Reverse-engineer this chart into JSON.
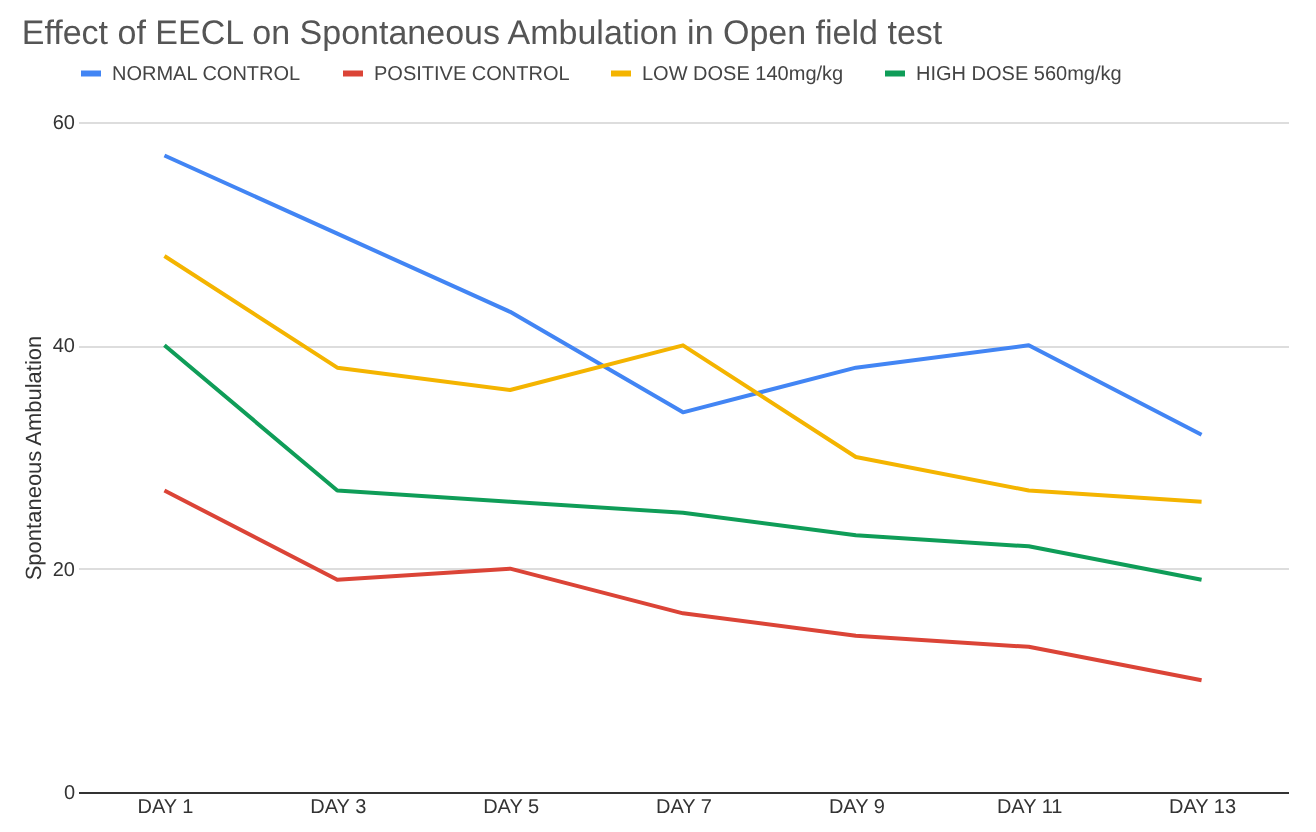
{
  "chart_data": {
    "type": "line",
    "title": "Effect of EECL on Spontaneous Ambulation in Open field test",
    "ylabel": "Spontaneous Ambulation",
    "categories": [
      "DAY 1",
      "DAY 3",
      "DAY 5",
      "DAY 7",
      "DAY 9",
      "DAY 11",
      "DAY 13"
    ],
    "series": [
      {
        "name": "NORMAL CONTROL",
        "color": "#4285f4",
        "values": [
          57,
          50,
          43,
          34,
          38,
          40,
          32
        ]
      },
      {
        "name": "POSITIVE CONTROL",
        "color": "#db4437",
        "values": [
          27,
          19,
          20,
          16,
          14,
          13,
          10
        ]
      },
      {
        "name": "LOW DOSE 140mg/kg",
        "color": "#f4b400",
        "values": [
          48,
          38,
          36,
          40,
          30,
          27,
          26
        ]
      },
      {
        "name": "HIGH DOSE 560mg/kg",
        "color": "#0f9d58",
        "values": [
          40,
          27,
          26,
          25,
          23,
          22,
          19
        ]
      }
    ],
    "ylim": [
      0,
      60
    ],
    "yticks": [
      0,
      20,
      40,
      60
    ],
    "grid": "y",
    "legend": "top",
    "line_style": "solid",
    "marker": "none"
  }
}
